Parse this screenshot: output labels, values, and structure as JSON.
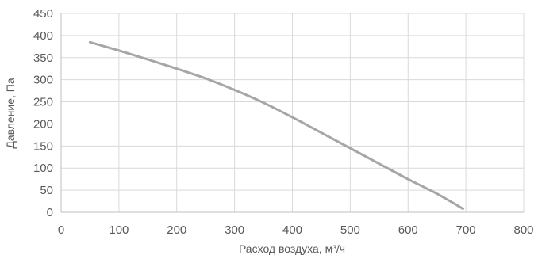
{
  "chart_data": {
    "type": "line",
    "title": "",
    "xlabel": "Расход воздуха, м³/ч",
    "ylabel": "Давление, Па",
    "xlim": [
      0,
      800
    ],
    "ylim": [
      0,
      450
    ],
    "xticks": [
      0,
      100,
      200,
      300,
      400,
      500,
      600,
      700,
      800
    ],
    "yticks": [
      0,
      50,
      100,
      150,
      200,
      250,
      300,
      350,
      400,
      450
    ],
    "grid": true,
    "legend": "none",
    "colors": {
      "series": "#a6a6a6"
    },
    "series": [
      {
        "x": [
          50,
          100,
          150,
          200,
          250,
          300,
          350,
          400,
          450,
          500,
          550,
          600,
          650,
          695
        ],
        "y": [
          385,
          366,
          346,
          325,
          303,
          277,
          248,
          215,
          180,
          145,
          110,
          75,
          42,
          8
        ]
      }
    ]
  }
}
